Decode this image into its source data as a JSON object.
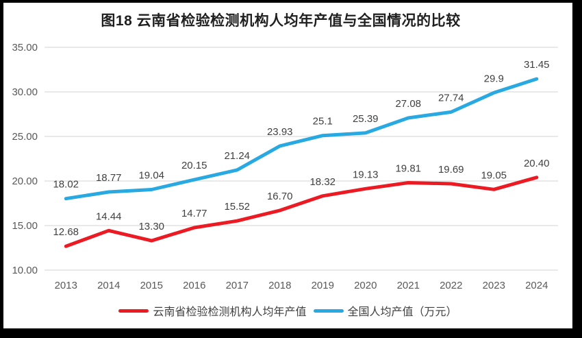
{
  "page": {
    "background_color": "#000000",
    "panel_color": "#ffffff"
  },
  "chart_data": {
    "type": "line",
    "title": "图18 云南省检验检测机构人均年产值与全国情况的比较",
    "categories": [
      "2013",
      "2014",
      "2015",
      "2016",
      "2017",
      "2018",
      "2019",
      "2020",
      "2021",
      "2022",
      "2023",
      "2024"
    ],
    "series": [
      {
        "name": "云南省检验检测机构人均年产值",
        "color": "#ec1b23",
        "values": [
          12.68,
          14.44,
          13.3,
          14.77,
          15.52,
          16.7,
          18.32,
          19.13,
          19.81,
          19.69,
          19.05,
          20.4
        ],
        "labels": [
          "12.68",
          "14.44",
          "13.30",
          "14.77",
          "15.52",
          "16.70",
          "18.32",
          "19.13",
          "19.81",
          "19.69",
          "19.05",
          "20.40"
        ]
      },
      {
        "name": "全国人均产值（万元）",
        "color": "#29a9e1",
        "values": [
          18.02,
          18.77,
          19.04,
          20.15,
          21.24,
          23.93,
          25.1,
          25.39,
          27.08,
          27.74,
          29.9,
          31.45
        ],
        "labels": [
          "18.02",
          "18.77",
          "19.04",
          "20.15",
          "21.24",
          "23.93",
          "25.1",
          "25.39",
          "27.08",
          "27.74",
          "29.9",
          "31.45"
        ]
      }
    ],
    "ylim": [
      10,
      35
    ],
    "yticks": [
      {
        "value": 35,
        "label": "35.00"
      },
      {
        "value": 30,
        "label": "30.00"
      },
      {
        "value": 25,
        "label": "25.00"
      },
      {
        "value": 20,
        "label": "20.00"
      },
      {
        "value": 15,
        "label": "15.00"
      },
      {
        "value": 10,
        "label": "10.00"
      }
    ],
    "grid": true,
    "legend_position": "bottom",
    "colors": {
      "gridline": "#e2e2e2",
      "axis_label": "#595959",
      "data_label": "#404040",
      "title": "#1f1f1f"
    }
  }
}
